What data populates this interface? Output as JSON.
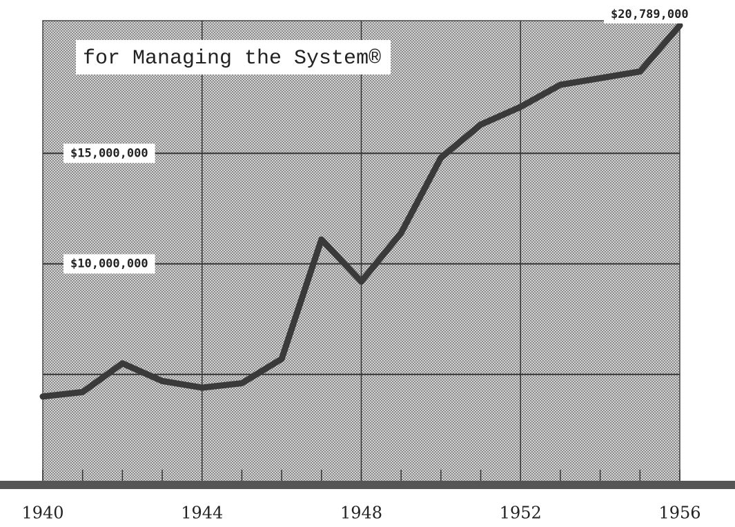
{
  "chart_data": {
    "type": "line",
    "title": "for Managing the System®",
    "x": [
      1940,
      1941,
      1942,
      1943,
      1944,
      1945,
      1946,
      1947,
      1948,
      1949,
      1950,
      1951,
      1952,
      1953,
      1954,
      1955,
      1956
    ],
    "series": [
      {
        "color": "#3a3a3a",
        "values": [
          4000000,
          4200000,
          5500000,
          4700000,
          4400000,
          4600000,
          5700000,
          11100000,
          9200000,
          11400000,
          14800000,
          16300000,
          17100000,
          18100000,
          18400000,
          18700000,
          20789000
        ],
        "value_labels": [
          null,
          null,
          null,
          null,
          null,
          null,
          null,
          null,
          null,
          null,
          null,
          null,
          null,
          null,
          null,
          null,
          "$20,789,000"
        ]
      }
    ],
    "xlim": [
      1940,
      1956
    ],
    "xticks": [
      1940,
      1944,
      1948,
      1952,
      1956
    ],
    "ylim": [
      0,
      21000000
    ],
    "yticks": [
      {
        "value": 5000000,
        "label": null
      },
      {
        "value": 10000000,
        "label": "$10,000,000"
      },
      {
        "value": 15000000,
        "label": "$15,000,000"
      }
    ],
    "grid": true
  }
}
